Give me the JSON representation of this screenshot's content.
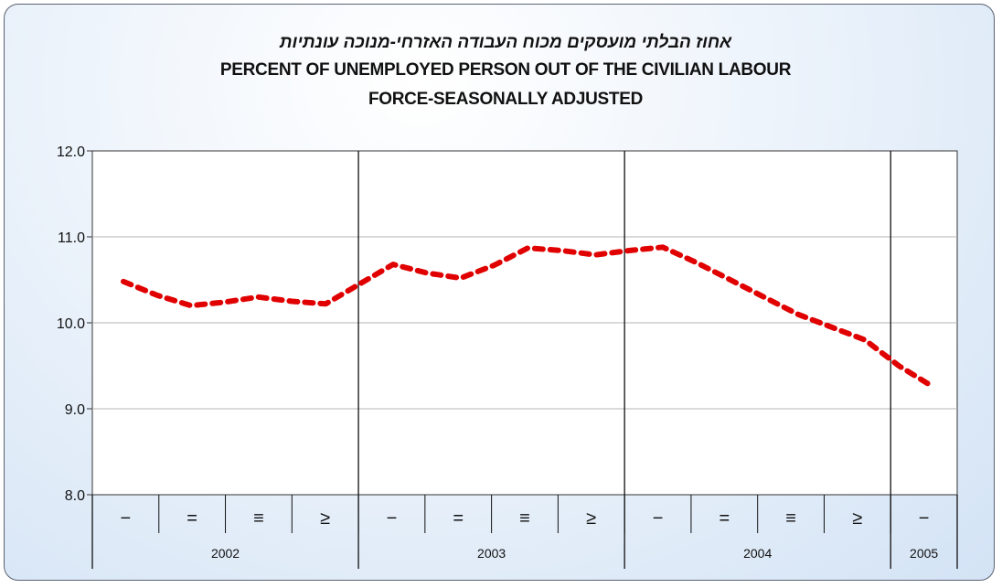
{
  "title": {
    "hebrew": "אחוז הבלתי מועסקים מכוח העבודה האזרחי-מנוכה עונתיות",
    "english_line1": "PERCENT OF UNEMPLOYED PERSON OUT OF THE CIVILIAN LABOUR",
    "english_line2": "FORCE-SEASONALLY ADJUSTED"
  },
  "chart_data": {
    "type": "line",
    "title": "PERCENT OF UNEMPLOYED PERSON OUT OF THE CIVILIAN LABOUR FORCE-SEASONALLY ADJUSTED",
    "xlabel": "",
    "ylabel": "",
    "ylim": [
      8.0,
      12.0
    ],
    "yticks": [
      "8.0",
      "9.0",
      "10.0",
      "11.0",
      "12.0"
    ],
    "grid": true,
    "legend": "none",
    "line_color": "#e00000",
    "line_style": "dashed",
    "quarter_labels": [
      "−",
      "=",
      "≡",
      "≥",
      "−",
      "=",
      "≡",
      "≥",
      "−",
      "=",
      "≡",
      "≥",
      "−"
    ],
    "year_groups": [
      {
        "label": "2002",
        "quarters": 4
      },
      {
        "label": "2003",
        "quarters": 4
      },
      {
        "label": "2004",
        "quarters": 4
      },
      {
        "label": "2005",
        "quarters": 1
      }
    ],
    "series": [
      {
        "values": [
          10.48,
          10.32,
          10.2,
          10.24,
          10.3,
          10.25,
          10.22,
          10.45,
          10.68,
          10.58,
          10.52,
          10.67,
          10.87,
          10.84,
          10.79,
          10.84,
          10.88,
          10.7,
          10.5,
          10.3,
          10.1,
          9.95,
          9.8,
          9.5,
          9.26
        ]
      }
    ]
  }
}
